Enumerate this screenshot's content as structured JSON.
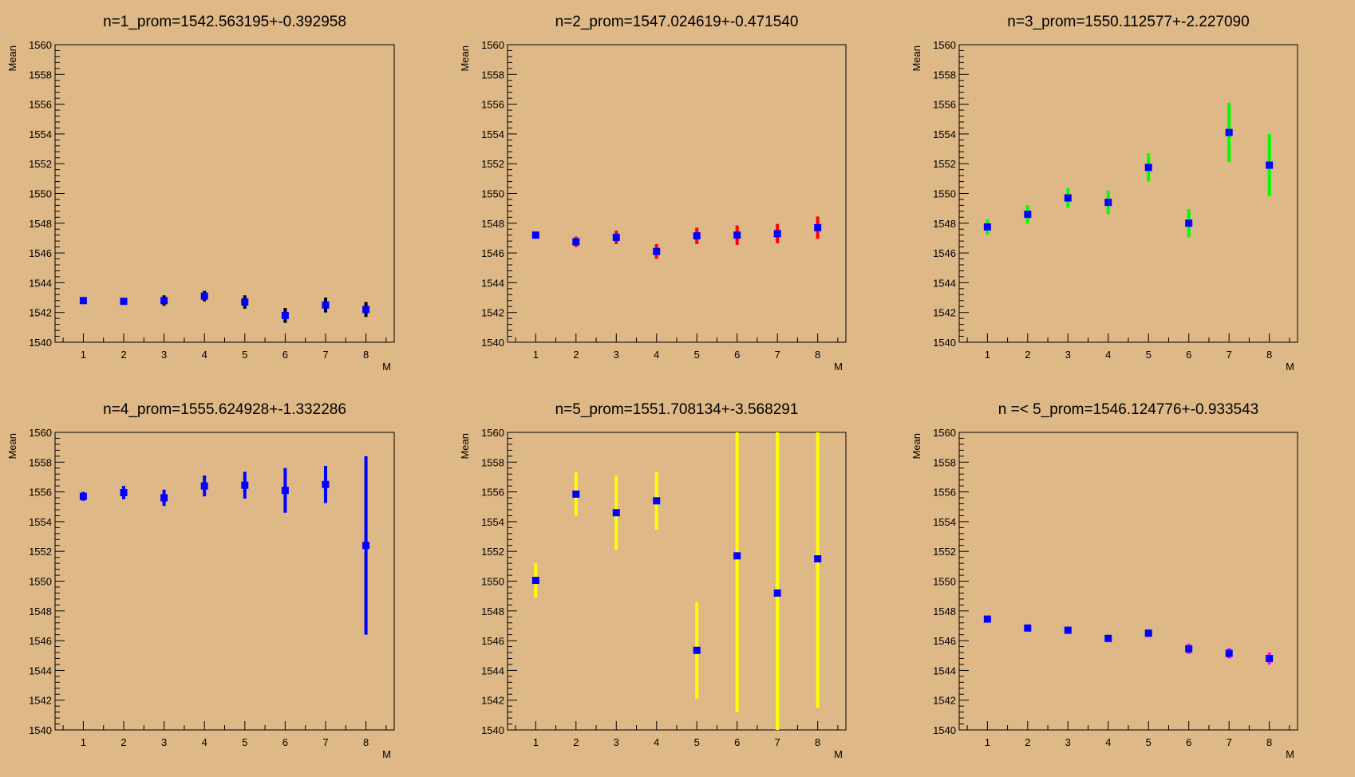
{
  "colors": {
    "background": "#deb887",
    "marker": "#0000ff"
  },
  "chart_data": [
    {
      "type": "scatter",
      "title": "n=1_prom=1542.563195+-0.392958",
      "xlabel": "M",
      "ylabel": "Mean",
      "xlim": [
        0.3,
        8.7
      ],
      "ylim": [
        1540,
        1560
      ],
      "x_ticks": [
        1,
        2,
        3,
        4,
        5,
        6,
        7,
        8
      ],
      "y_ticks": [
        1540,
        1542,
        1544,
        1546,
        1548,
        1550,
        1552,
        1554,
        1556,
        1558,
        1560
      ],
      "error_color": "#000000",
      "x": [
        1,
        2,
        3,
        4,
        5,
        6,
        7,
        8
      ],
      "y": [
        1542.8,
        1542.75,
        1542.8,
        1543.1,
        1542.7,
        1541.8,
        1542.5,
        1542.2
      ],
      "err": [
        0.2,
        0.2,
        0.35,
        0.35,
        0.45,
        0.5,
        0.5,
        0.5
      ]
    },
    {
      "type": "scatter",
      "title": "n=2_prom=1547.024619+-0.471540",
      "xlabel": "M",
      "ylabel": "Mean",
      "xlim": [
        0.3,
        8.7
      ],
      "ylim": [
        1540,
        1560
      ],
      "x_ticks": [
        1,
        2,
        3,
        4,
        5,
        6,
        7,
        8
      ],
      "y_ticks": [
        1540,
        1542,
        1544,
        1546,
        1548,
        1550,
        1552,
        1554,
        1556,
        1558,
        1560
      ],
      "error_color": "#ff0000",
      "x": [
        1,
        2,
        3,
        4,
        5,
        6,
        7,
        8
      ],
      "y": [
        1547.2,
        1546.75,
        1547.05,
        1546.1,
        1547.15,
        1547.2,
        1547.3,
        1547.7
      ],
      "err": [
        0.2,
        0.35,
        0.45,
        0.5,
        0.55,
        0.65,
        0.65,
        0.75
      ]
    },
    {
      "type": "scatter",
      "title": "n=3_prom=1550.112577+-2.227090",
      "xlabel": "M",
      "ylabel": "Mean",
      "xlim": [
        0.3,
        8.7
      ],
      "ylim": [
        1540,
        1560
      ],
      "x_ticks": [
        1,
        2,
        3,
        4,
        5,
        6,
        7,
        8
      ],
      "y_ticks": [
        1540,
        1542,
        1544,
        1546,
        1548,
        1550,
        1552,
        1554,
        1556,
        1558,
        1560
      ],
      "error_color": "#00ff00",
      "x": [
        1,
        2,
        3,
        4,
        5,
        6,
        7,
        8
      ],
      "y": [
        1547.75,
        1548.6,
        1549.7,
        1549.4,
        1551.75,
        1548.0,
        1554.1,
        1551.9
      ],
      "err": [
        0.5,
        0.6,
        0.65,
        0.8,
        0.95,
        0.95,
        2.0,
        2.1
      ]
    },
    {
      "type": "scatter",
      "title": "n=4_prom=1555.624928+-1.332286",
      "xlabel": "M",
      "ylabel": "Mean",
      "xlim": [
        0.3,
        8.7
      ],
      "ylim": [
        1540,
        1560
      ],
      "x_ticks": [
        1,
        2,
        3,
        4,
        5,
        6,
        7,
        8
      ],
      "y_ticks": [
        1540,
        1542,
        1544,
        1546,
        1548,
        1550,
        1552,
        1554,
        1556,
        1558,
        1560
      ],
      "error_color": "#0000ff",
      "x": [
        1,
        2,
        3,
        4,
        5,
        6,
        7,
        8
      ],
      "y": [
        1555.7,
        1555.95,
        1555.6,
        1556.4,
        1556.45,
        1556.1,
        1556.5,
        1552.4
      ],
      "err": [
        0.3,
        0.45,
        0.55,
        0.7,
        0.9,
        1.5,
        1.25,
        6.0
      ]
    },
    {
      "type": "scatter",
      "title": "n=5_prom=1551.708134+-3.568291",
      "xlabel": "M",
      "ylabel": "Mean",
      "xlim": [
        0.3,
        8.7
      ],
      "ylim": [
        1540,
        1560
      ],
      "x_ticks": [
        1,
        2,
        3,
        4,
        5,
        6,
        7,
        8
      ],
      "y_ticks": [
        1540,
        1542,
        1544,
        1546,
        1548,
        1550,
        1552,
        1554,
        1556,
        1558,
        1560
      ],
      "error_color": "#ffff00",
      "x": [
        1,
        2,
        3,
        4,
        5,
        6,
        7,
        8
      ],
      "y": [
        1550.05,
        1555.85,
        1554.6,
        1555.4,
        1545.35,
        1551.7,
        1549.2,
        1551.5
      ],
      "err": [
        1.15,
        1.45,
        2.5,
        1.95,
        3.25,
        10.5,
        12.0,
        10.0
      ]
    },
    {
      "type": "scatter",
      "title": "n =< 5_prom=1546.124776+-0.933543",
      "xlabel": "M",
      "ylabel": "Mean",
      "xlim": [
        0.3,
        8.7
      ],
      "ylim": [
        1540,
        1560
      ],
      "x_ticks": [
        1,
        2,
        3,
        4,
        5,
        6,
        7,
        8
      ],
      "y_ticks": [
        1540,
        1542,
        1544,
        1546,
        1548,
        1550,
        1552,
        1554,
        1556,
        1558,
        1560
      ],
      "error_color": "#ff00ff",
      "x": [
        1,
        2,
        3,
        4,
        5,
        6,
        7,
        8
      ],
      "y": [
        1547.45,
        1546.85,
        1546.7,
        1546.15,
        1546.5,
        1545.45,
        1545.15,
        1544.8
      ],
      "err": [
        0.1,
        0.15,
        0.15,
        0.2,
        0.25,
        0.35,
        0.35,
        0.4
      ]
    }
  ]
}
